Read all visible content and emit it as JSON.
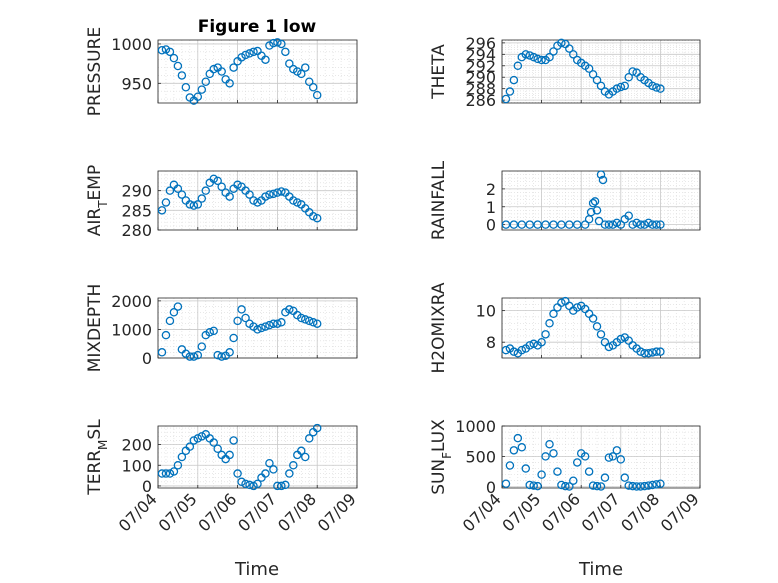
{
  "figure": {
    "title": "Figure 1 low",
    "xlabel": "Time",
    "x_tick_labels": [
      "07/04",
      "07/05",
      "07/06",
      "07/07",
      "07/08",
      "07/09"
    ],
    "marker_color": "#0072BD",
    "grid": true,
    "marker": "open-circle"
  },
  "chart_data": [
    {
      "type": "scatter",
      "ylabel": "PRESSURE",
      "ylim": [
        925,
        1005
      ],
      "yticks": [
        950,
        1000
      ],
      "ytick_labels": [
        "950",
        "1000"
      ],
      "x": [
        0.1,
        0.2,
        0.3,
        0.4,
        0.5,
        0.6,
        0.7,
        0.8,
        0.9,
        1.0,
        1.1,
        1.2,
        1.3,
        1.4,
        1.5,
        1.6,
        1.7,
        1.8,
        1.9,
        2.0,
        2.1,
        2.2,
        2.3,
        2.4,
        2.5,
        2.6,
        2.7,
        2.8,
        2.9,
        3.0,
        3.1,
        3.2,
        3.3,
        3.4,
        3.5,
        3.6,
        3.7,
        3.8,
        3.9,
        4.0
      ],
      "y": [
        992,
        993,
        990,
        982,
        972,
        960,
        945,
        932,
        928,
        933,
        942,
        952,
        962,
        968,
        970,
        965,
        955,
        950,
        970,
        978,
        983,
        986,
        988,
        990,
        991,
        985,
        980,
        998,
        1001,
        1002,
        1000,
        990,
        975,
        968,
        965,
        962,
        970,
        952,
        945,
        935
      ]
    },
    {
      "type": "scatter",
      "ylabel": "THETA",
      "ylim": [
        285.5,
        296.5
      ],
      "yticks": [
        286,
        288,
        290,
        292,
        294,
        296
      ],
      "ytick_labels": [
        "286",
        "288",
        "290",
        "292",
        "294",
        "296"
      ],
      "x": [
        0.1,
        0.2,
        0.3,
        0.4,
        0.5,
        0.6,
        0.7,
        0.8,
        0.9,
        1.0,
        1.1,
        1.2,
        1.3,
        1.4,
        1.5,
        1.6,
        1.7,
        1.8,
        1.9,
        2.0,
        2.1,
        2.2,
        2.3,
        2.4,
        2.5,
        2.6,
        2.7,
        2.8,
        2.9,
        3.0,
        3.1,
        3.2,
        3.3,
        3.4,
        3.5,
        3.6,
        3.7,
        3.8,
        3.9,
        4.0
      ],
      "y": [
        286.2,
        287.5,
        289.5,
        292,
        293.5,
        294,
        293.8,
        293.5,
        293.2,
        293,
        293,
        293.5,
        294.5,
        295.5,
        296,
        295.8,
        295,
        294,
        293,
        292.5,
        292,
        291.5,
        290.5,
        289.5,
        288.5,
        287.5,
        287,
        287.5,
        288,
        288.3,
        288.5,
        290,
        291,
        290.8,
        290,
        289.5,
        289,
        288.5,
        288.2,
        288
      ]
    },
    {
      "type": "scatter",
      "ylabel": "AIR_TEMP",
      "ylim": [
        280,
        295
      ],
      "yticks": [
        280,
        285,
        290
      ],
      "ytick_labels": [
        "280",
        "285",
        "290"
      ],
      "x": [
        0.1,
        0.2,
        0.3,
        0.4,
        0.5,
        0.6,
        0.7,
        0.8,
        0.9,
        1.0,
        1.1,
        1.2,
        1.3,
        1.4,
        1.5,
        1.6,
        1.7,
        1.8,
        1.9,
        2.0,
        2.1,
        2.2,
        2.3,
        2.4,
        2.5,
        2.6,
        2.7,
        2.8,
        2.9,
        3.0,
        3.1,
        3.2,
        3.3,
        3.4,
        3.5,
        3.6,
        3.7,
        3.8,
        3.9,
        4.0
      ],
      "y": [
        285,
        287,
        290,
        291.5,
        290.5,
        289,
        287.5,
        286.5,
        286.2,
        286.5,
        288,
        290,
        292,
        293,
        292.5,
        291,
        289.5,
        288.5,
        290.5,
        291.5,
        291,
        290,
        289,
        287.5,
        287,
        287.5,
        288.5,
        289,
        289.2,
        289.5,
        289.8,
        289.5,
        288.5,
        287.5,
        287,
        286.5,
        285.5,
        284.5,
        283.5,
        283
      ]
    },
    {
      "type": "scatter",
      "ylabel": "RAINFALL",
      "ylim": [
        -0.3,
        3
      ],
      "yticks": [
        0,
        1,
        2
      ],
      "ytick_labels": [
        "0",
        "1",
        "2"
      ],
      "x": [
        0.1,
        0.3,
        0.5,
        0.7,
        0.9,
        1.1,
        1.3,
        1.5,
        1.7,
        1.9,
        2.1,
        2.2,
        2.25,
        2.3,
        2.35,
        2.4,
        2.45,
        2.5,
        2.55,
        2.6,
        2.7,
        2.8,
        2.9,
        3.0,
        3.1,
        3.2,
        3.3,
        3.4,
        3.5,
        3.6,
        3.7,
        3.8,
        3.9,
        4.0
      ],
      "y": [
        0,
        0,
        0,
        0,
        0,
        0,
        0,
        0,
        0,
        0,
        0,
        0.3,
        0.7,
        1.2,
        1.3,
        0.8,
        0.2,
        2.8,
        2.5,
        0,
        0,
        0,
        0.1,
        0,
        0.3,
        0.5,
        0,
        0.1,
        0,
        0,
        0.1,
        0,
        0,
        0
      ]
    },
    {
      "type": "scatter",
      "ylabel": "MIXDEPTH",
      "ylim": [
        0,
        2100
      ],
      "yticks": [
        0,
        1000,
        2000
      ],
      "ytick_labels": [
        "0",
        "1000",
        "2000"
      ],
      "x": [
        0.1,
        0.2,
        0.3,
        0.4,
        0.5,
        0.6,
        0.7,
        0.8,
        0.9,
        1.0,
        1.1,
        1.2,
        1.3,
        1.4,
        1.5,
        1.6,
        1.7,
        1.8,
        1.9,
        2.0,
        2.1,
        2.2,
        2.3,
        2.4,
        2.5,
        2.6,
        2.7,
        2.8,
        2.9,
        3.0,
        3.1,
        3.2,
        3.3,
        3.4,
        3.5,
        3.6,
        3.7,
        3.8,
        3.9,
        4.0
      ],
      "y": [
        200,
        800,
        1300,
        1600,
        1800,
        300,
        150,
        50,
        50,
        100,
        400,
        800,
        900,
        950,
        100,
        50,
        80,
        200,
        700,
        1300,
        1700,
        1400,
        1200,
        1100,
        1000,
        1050,
        1100,
        1150,
        1200,
        1200,
        1250,
        1600,
        1700,
        1650,
        1500,
        1400,
        1350,
        1300,
        1250,
        1200
      ]
    },
    {
      "type": "scatter",
      "ylabel": "H2OMIXRA",
      "ylim": [
        7,
        10.8
      ],
      "yticks": [
        8,
        10
      ],
      "ytick_labels": [
        "8",
        "10"
      ],
      "x": [
        0.1,
        0.2,
        0.3,
        0.4,
        0.5,
        0.6,
        0.7,
        0.8,
        0.9,
        1.0,
        1.1,
        1.2,
        1.3,
        1.4,
        1.5,
        1.6,
        1.7,
        1.8,
        1.9,
        2.0,
        2.1,
        2.2,
        2.3,
        2.4,
        2.5,
        2.6,
        2.7,
        2.8,
        2.9,
        3.0,
        3.1,
        3.2,
        3.3,
        3.4,
        3.5,
        3.6,
        3.7,
        3.8,
        3.9,
        4.0
      ],
      "y": [
        7.5,
        7.6,
        7.4,
        7.3,
        7.5,
        7.6,
        7.8,
        7.9,
        7.8,
        8,
        8.5,
        9.2,
        9.8,
        10.2,
        10.5,
        10.6,
        10.3,
        10,
        10.2,
        10.3,
        10.1,
        9.8,
        9.5,
        9,
        8.5,
        8,
        7.7,
        7.8,
        8,
        8.2,
        8.3,
        8.1,
        7.8,
        7.6,
        7.4,
        7.3,
        7.3,
        7.35,
        7.4,
        7.4
      ]
    },
    {
      "type": "scatter",
      "ylabel": "TERR_MSL",
      "ylim": [
        -10,
        290
      ],
      "yticks": [
        0,
        100,
        200
      ],
      "ytick_labels": [
        "0",
        "100",
        "200"
      ],
      "x": [
        0.1,
        0.2,
        0.3,
        0.4,
        0.5,
        0.6,
        0.7,
        0.8,
        0.9,
        1.0,
        1.1,
        1.2,
        1.3,
        1.4,
        1.5,
        1.6,
        1.7,
        1.8,
        1.9,
        2.0,
        2.1,
        2.2,
        2.3,
        2.4,
        2.5,
        2.6,
        2.7,
        2.8,
        2.9,
        3.0,
        3.1,
        3.2,
        3.3,
        3.4,
        3.5,
        3.6,
        3.7,
        3.8,
        3.9,
        4.0
      ],
      "y": [
        60,
        60,
        60,
        70,
        100,
        140,
        170,
        190,
        220,
        230,
        240,
        250,
        230,
        210,
        180,
        150,
        130,
        150,
        220,
        60,
        20,
        10,
        5,
        0,
        10,
        40,
        60,
        110,
        80,
        0,
        0,
        5,
        60,
        100,
        150,
        170,
        140,
        230,
        260,
        280
      ]
    },
    {
      "type": "scatter",
      "ylabel": "SUN_FLUX",
      "ylim": [
        -20,
        1000
      ],
      "yticks": [
        0,
        500,
        1000
      ],
      "ytick_labels": [
        "0",
        "500",
        "1000"
      ],
      "x": [
        0.1,
        0.2,
        0.3,
        0.4,
        0.5,
        0.6,
        0.7,
        0.8,
        0.9,
        1.0,
        1.1,
        1.2,
        1.3,
        1.4,
        1.5,
        1.6,
        1.7,
        1.8,
        1.9,
        2.0,
        2.1,
        2.2,
        2.3,
        2.4,
        2.5,
        2.6,
        2.7,
        2.8,
        2.9,
        3.0,
        3.1,
        3.2,
        3.3,
        3.4,
        3.5,
        3.6,
        3.7,
        3.8,
        3.9,
        4.0
      ],
      "y": [
        50,
        350,
        600,
        800,
        650,
        300,
        30,
        20,
        10,
        200,
        500,
        700,
        550,
        250,
        30,
        10,
        5,
        100,
        400,
        550,
        500,
        250,
        20,
        10,
        5,
        150,
        480,
        500,
        600,
        450,
        150,
        20,
        10,
        5,
        5,
        10,
        20,
        30,
        40,
        50
      ]
    }
  ]
}
